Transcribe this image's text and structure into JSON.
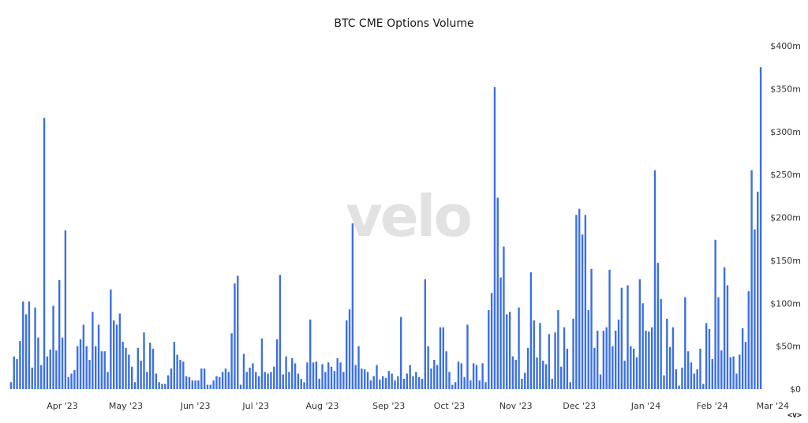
{
  "title": "BTC CME Options Volume",
  "watermark": "velo",
  "nav": "<v>",
  "colors": {
    "bar": "#3a6fe6",
    "text": "#333333",
    "watermark": "#e2e2e2"
  },
  "chart_data": {
    "type": "bar",
    "title": "BTC CME Options Volume",
    "xlabel": "",
    "ylabel": "",
    "ylim": [
      0,
      400
    ],
    "y_unit": "m (USD)",
    "y_ticks": [
      {
        "value": 0,
        "label": "$0"
      },
      {
        "value": 50,
        "label": "$50m"
      },
      {
        "value": 100,
        "label": "$100m"
      },
      {
        "value": 150,
        "label": "$150m"
      },
      {
        "value": 200,
        "label": "$200m"
      },
      {
        "value": 250,
        "label": "$250m"
      },
      {
        "value": 300,
        "label": "$300m"
      },
      {
        "value": 350,
        "label": "$350m"
      },
      {
        "value": 400,
        "label": "$400m"
      }
    ],
    "x_ticks": [
      {
        "label": "Apr '23",
        "index": 17
      },
      {
        "label": "May '23",
        "index": 38
      },
      {
        "label": "Jun '23",
        "index": 61
      },
      {
        "label": "Jul '23",
        "index": 81
      },
      {
        "label": "Aug '23",
        "index": 103
      },
      {
        "label": "Sep '23",
        "index": 125
      },
      {
        "label": "Oct '23",
        "index": 145
      },
      {
        "label": "Nov '23",
        "index": 167
      },
      {
        "label": "Dec '23",
        "index": 188
      },
      {
        "label": "Jan '24",
        "index": 210
      },
      {
        "label": "Feb '24",
        "index": 232
      },
      {
        "label": "Mar '24",
        "index": 252
      }
    ],
    "grid": false,
    "legend": "none",
    "values": [
      8,
      38,
      35,
      56,
      102,
      87,
      102,
      25,
      95,
      60,
      28,
      316,
      38,
      46,
      97,
      45,
      127,
      60,
      185,
      14,
      18,
      22,
      50,
      58,
      75,
      50,
      34,
      90,
      50,
      75,
      44,
      44,
      20,
      116,
      80,
      75,
      88,
      55,
      48,
      40,
      26,
      8,
      48,
      33,
      66,
      20,
      54,
      47,
      18,
      8,
      6,
      6,
      16,
      24,
      55,
      40,
      34,
      32,
      15,
      14,
      10,
      10,
      10,
      24,
      24,
      5,
      5,
      10,
      15,
      14,
      20,
      24,
      20,
      65,
      123,
      132,
      5,
      41,
      20,
      25,
      30,
      20,
      15,
      59,
      20,
      18,
      20,
      26,
      58,
      133,
      17,
      38,
      20,
      36,
      30,
      18,
      12,
      8,
      31,
      81,
      31,
      32,
      12,
      29,
      20,
      31,
      26,
      21,
      36,
      31,
      20,
      80,
      93,
      193,
      28,
      50,
      24,
      23,
      20,
      10,
      15,
      28,
      11,
      15,
      13,
      21,
      18,
      10,
      15,
      84,
      12,
      18,
      28,
      15,
      20,
      14,
      12,
      128,
      50,
      24,
      34,
      28,
      72,
      72,
      44,
      20,
      5,
      8,
      32,
      30,
      14,
      75,
      10,
      30,
      28,
      10,
      30,
      8,
      92,
      112,
      352,
      223,
      130,
      166,
      87,
      90,
      38,
      34,
      95,
      12,
      19,
      48,
      136,
      80,
      37,
      77,
      33,
      29,
      64,
      12,
      66,
      92,
      26,
      72,
      47,
      8,
      82,
      203,
      210,
      180,
      203,
      92,
      140,
      48,
      68,
      17,
      68,
      72,
      139,
      50,
      68,
      81,
      118,
      33,
      121,
      50,
      47,
      37,
      128,
      100,
      68,
      67,
      72,
      255,
      147,
      105,
      16,
      82,
      49,
      72,
      23,
      4,
      25,
      107,
      44,
      31,
      18,
      23,
      47,
      6,
      77,
      70,
      35,
      174,
      107,
      45,
      142,
      121,
      37,
      38,
      18,
      40,
      71,
      55,
      114,
      255,
      186,
      230,
      375
    ]
  }
}
